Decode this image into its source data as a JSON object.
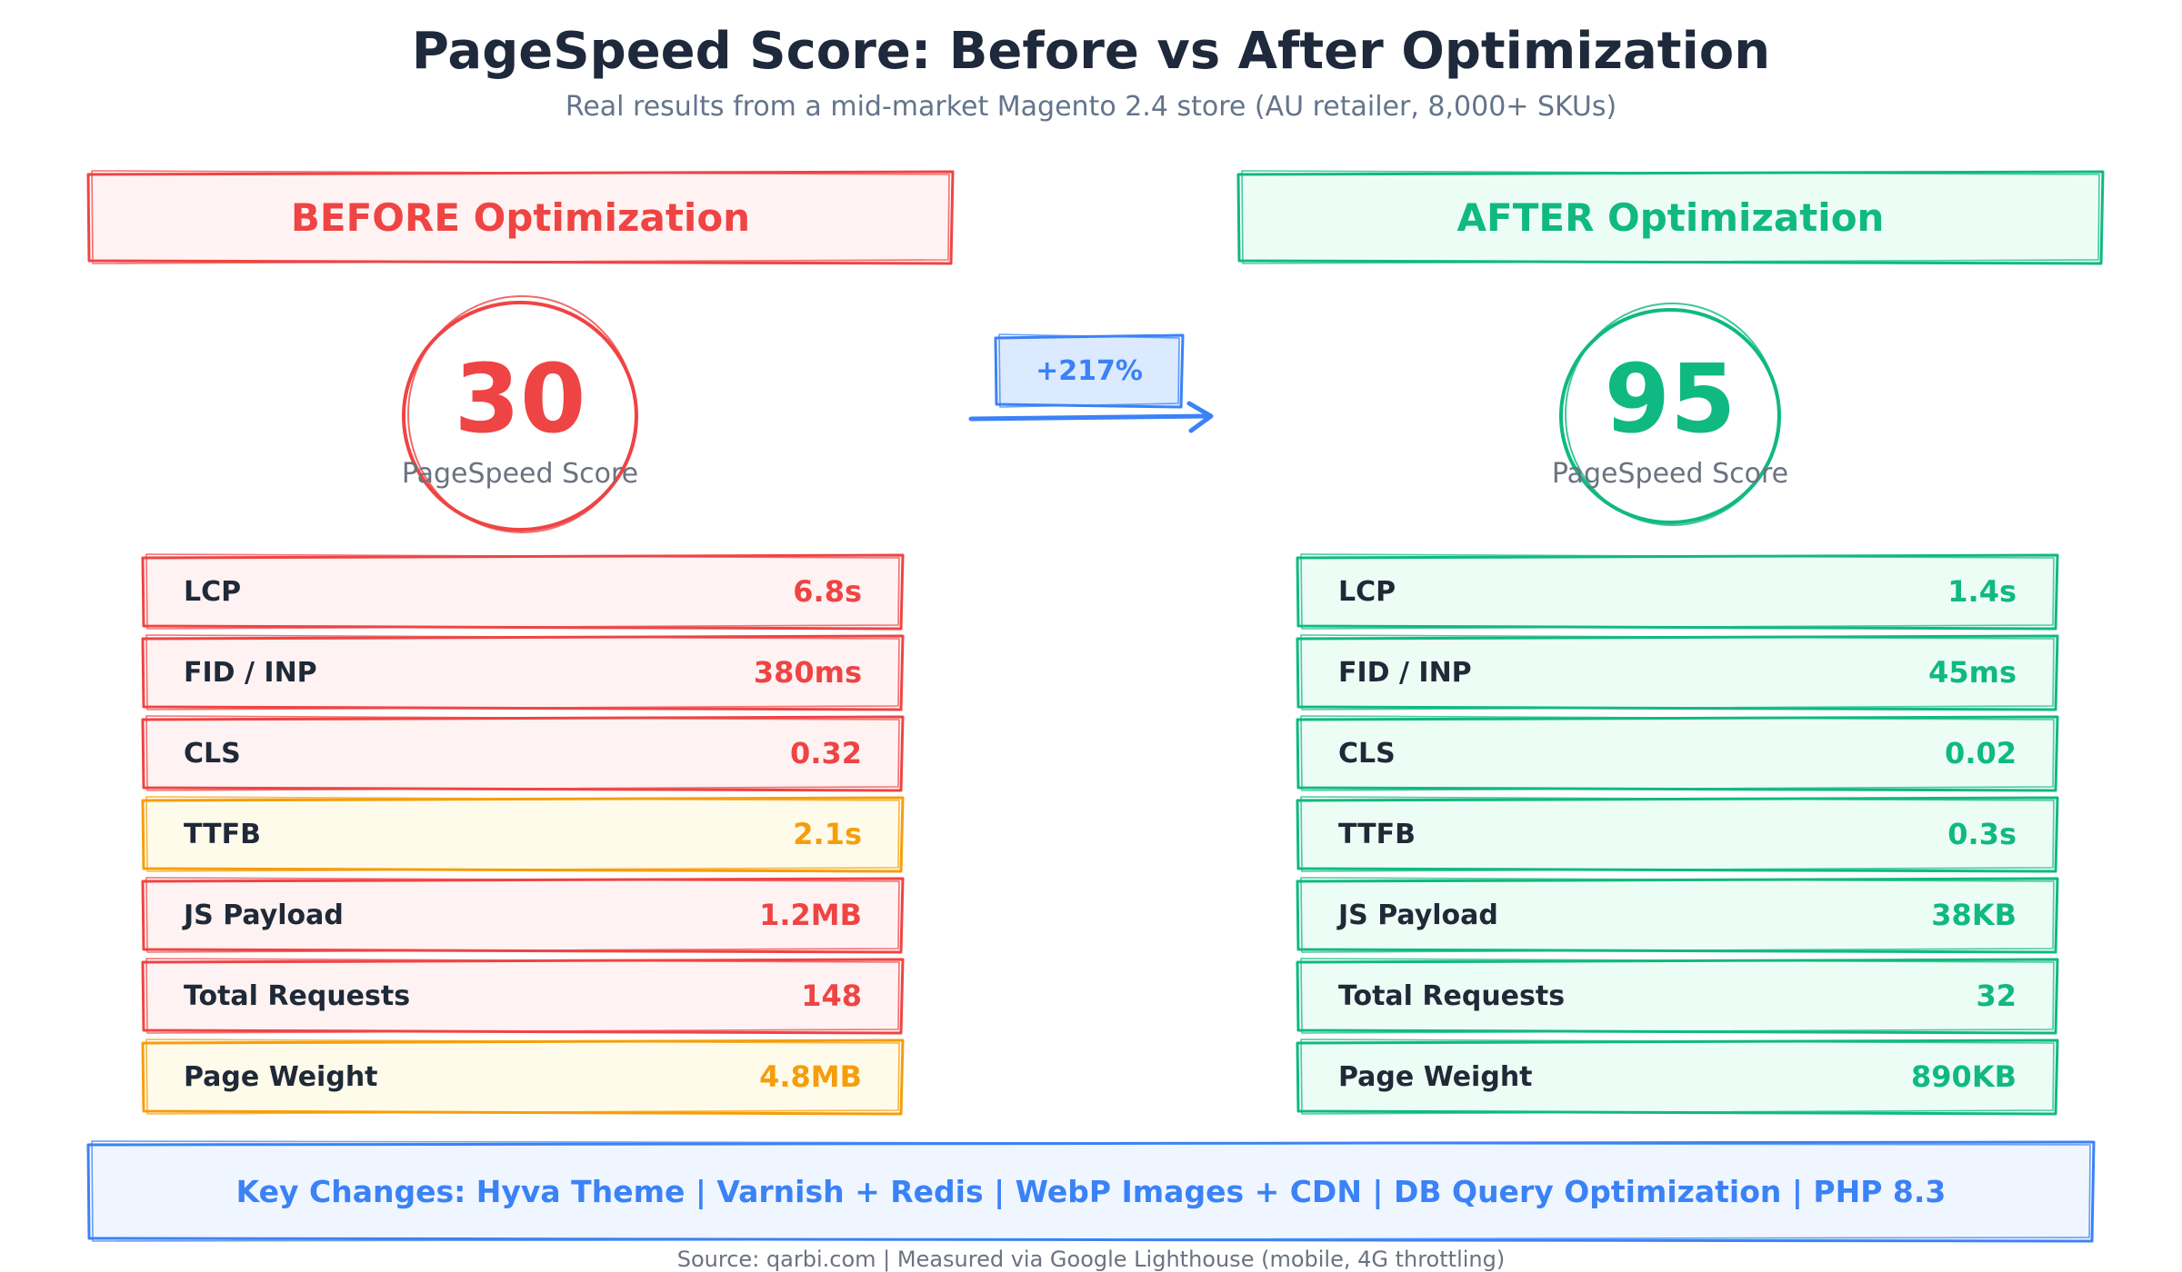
{
  "title": "PageSpeed Score: Before vs After Optimization",
  "subtitle": "Real results from a mid-market Magento 2.4 store (AU retailer, 8,000+ SKUs)",
  "colors": {
    "before": "#ef4444",
    "before_fill": "#fef2f2",
    "warning": "#f59e0b",
    "warning_fill": "#fffbeb",
    "after": "#10b981",
    "after_fill": "#ecfdf5",
    "accent": "#3b82f6",
    "accent_fill": "#eff6ff"
  },
  "before": {
    "heading": "BEFORE Optimization",
    "score": "30",
    "score_label": "PageSpeed Score",
    "metrics": [
      {
        "label": "LCP",
        "value": "6.8s",
        "status": "poor"
      },
      {
        "label": "FID / INP",
        "value": "380ms",
        "status": "poor"
      },
      {
        "label": "CLS",
        "value": "0.32",
        "status": "poor"
      },
      {
        "label": "TTFB",
        "value": "2.1s",
        "status": "warning"
      },
      {
        "label": "JS Payload",
        "value": "1.2MB",
        "status": "poor"
      },
      {
        "label": "Total Requests",
        "value": "148",
        "status": "poor"
      },
      {
        "label": "Page Weight",
        "value": "4.8MB",
        "status": "warning"
      }
    ]
  },
  "after": {
    "heading": "AFTER Optimization",
    "score": "95",
    "score_label": "PageSpeed Score",
    "metrics": [
      {
        "label": "LCP",
        "value": "1.4s",
        "status": "good"
      },
      {
        "label": "FID / INP",
        "value": "45ms",
        "status": "good"
      },
      {
        "label": "CLS",
        "value": "0.02",
        "status": "good"
      },
      {
        "label": "TTFB",
        "value": "0.3s",
        "status": "good"
      },
      {
        "label": "JS Payload",
        "value": "38KB",
        "status": "good"
      },
      {
        "label": "Total Requests",
        "value": "32",
        "status": "good"
      },
      {
        "label": "Page Weight",
        "value": "890KB",
        "status": "good"
      }
    ]
  },
  "improvement": "+217%",
  "key_changes": "Key Changes: Hyva Theme  |  Varnish + Redis  |  WebP Images + CDN  |  DB Query Optimization  |  PHP 8.3",
  "source": "Source: qarbi.com | Measured via Google Lighthouse (mobile, 4G throttling)"
}
